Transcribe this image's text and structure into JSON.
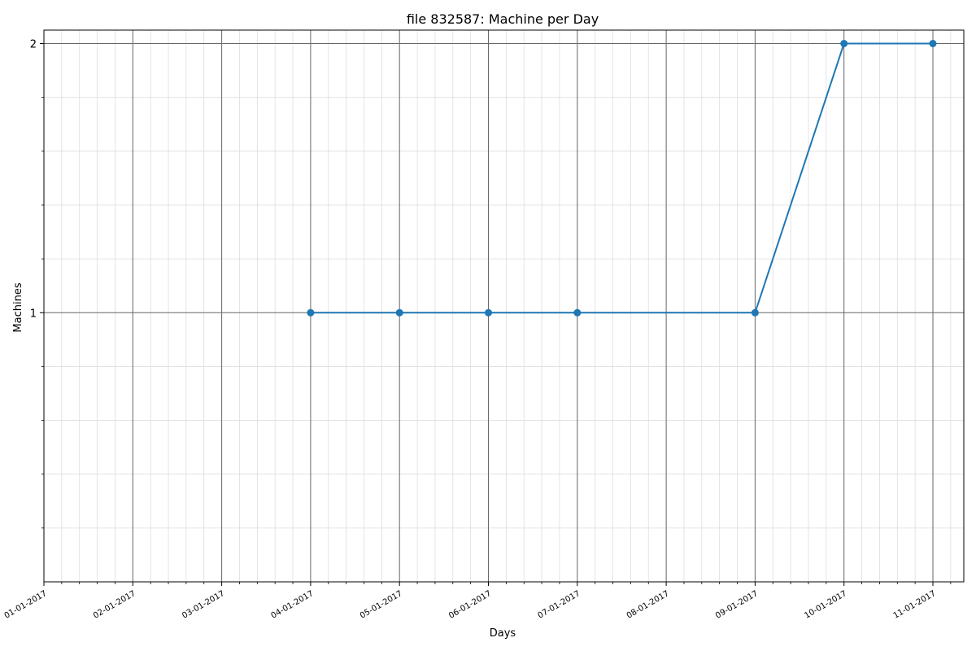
{
  "chart_data": {
    "type": "line",
    "title": "file 832587: Machine per Day",
    "xlabel": "Days",
    "ylabel": "Machines",
    "x_tick_labels": [
      "01-01-2017",
      "02-01-2017",
      "03-01-2017",
      "04-01-2017",
      "05-01-2017",
      "06-01-2017",
      "07-01-2017",
      "08-01-2017",
      "09-01-2017",
      "10-01-2017",
      "11-01-2017"
    ],
    "y_ticks": [
      1,
      2
    ],
    "ylim": [
      0,
      2.05
    ],
    "grid": true,
    "series": [
      {
        "x": [
          "04-01-2017",
          "05-01-2017",
          "06-01-2017",
          "07-01-2017",
          "09-01-2017",
          "10-01-2017",
          "11-01-2017"
        ],
        "y": [
          1,
          1,
          1,
          1,
          1,
          2,
          2
        ]
      }
    ],
    "colors": {
      "line": "#1f77b4",
      "major_grid": "#666666",
      "minor_grid": "#dddddd"
    }
  }
}
